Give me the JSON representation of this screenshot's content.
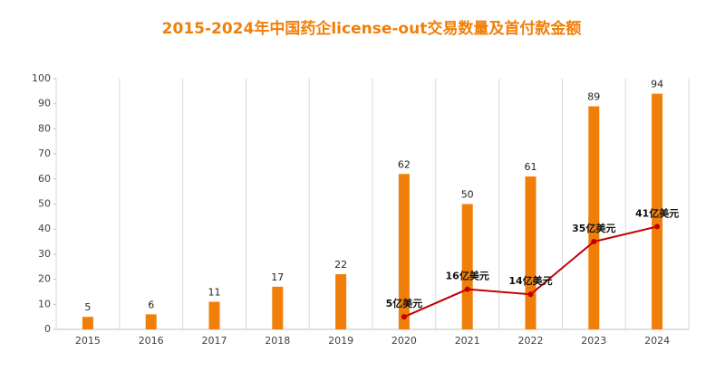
{
  "chart_data": {
    "type": "bar_line",
    "title": "2015-2024年中国药企license-out交易数量及首付款金额",
    "categories": [
      "2015",
      "2016",
      "2017",
      "2018",
      "2019",
      "2020",
      "2021",
      "2022",
      "2023",
      "2024"
    ],
    "bars": {
      "values": [
        5,
        6,
        11,
        17,
        22,
        62,
        50,
        61,
        89,
        94
      ],
      "color": "#f07f09"
    },
    "line": {
      "values": [
        null,
        null,
        null,
        null,
        null,
        5,
        16,
        14,
        35,
        41
      ],
      "value_labels": [
        null,
        null,
        null,
        null,
        null,
        "5亿美元",
        "16亿美元",
        "14亿美元",
        "35亿美元",
        "41亿美元"
      ],
      "color": "#c00000"
    },
    "ylim": [
      0,
      100
    ],
    "yticks": [
      0,
      10,
      20,
      30,
      40,
      50,
      60,
      70,
      80,
      90,
      100
    ],
    "grid": true
  }
}
